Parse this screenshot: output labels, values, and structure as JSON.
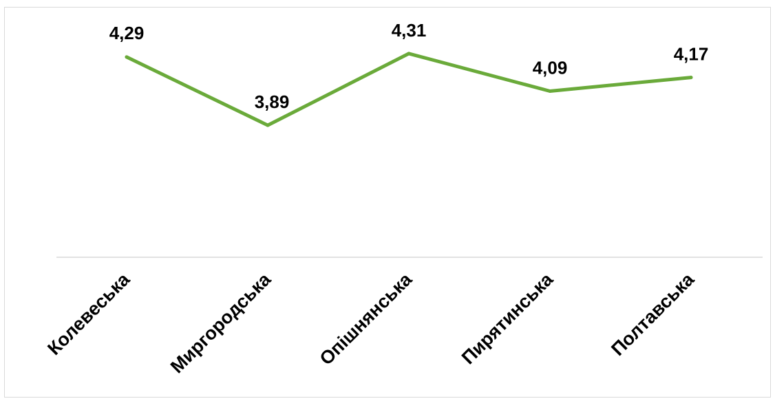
{
  "chart_data": {
    "type": "line",
    "title": "",
    "xlabel": "",
    "ylabel": "",
    "categories": [
      "Колевеська",
      "Миргородська",
      "Опішнянська",
      "Пирятинська",
      "Полтавська"
    ],
    "series": [
      {
        "values": [
          4.29,
          3.89,
          4.31,
          4.09,
          4.17
        ],
        "data_labels": [
          "4,29",
          "3,89",
          "4,31",
          "4,09",
          "4,17"
        ]
      }
    ],
    "ylim": [
      3.6,
      4.35
    ],
    "grid": false,
    "legend": "none",
    "line_color": "#6aaa3a",
    "baseline_color": "#d9d9d9"
  }
}
